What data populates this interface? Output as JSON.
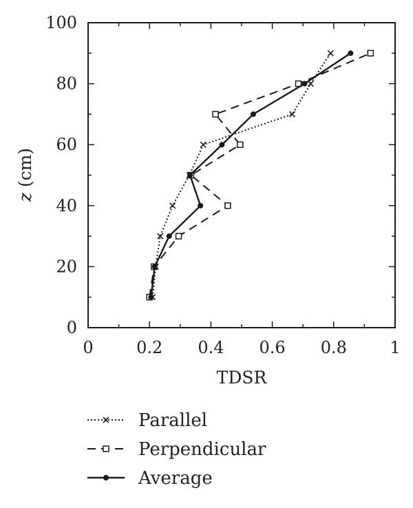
{
  "chart_data": {
    "type": "line",
    "title": "",
    "xlabel": "TDSR",
    "ylabel_italic": "z",
    "ylabel_rest": " (cm)",
    "xlim": [
      0,
      1
    ],
    "ylim": [
      0,
      100
    ],
    "x_ticks": [
      {
        "value": 0,
        "label": "0"
      },
      {
        "value": 0.2,
        "label": "0.2"
      },
      {
        "value": 0.4,
        "label": "0.4"
      },
      {
        "value": 0.6,
        "label": "0.6"
      },
      {
        "value": 0.8,
        "label": "0.8"
      },
      {
        "value": 1,
        "label": "1"
      }
    ],
    "y_ticks": [
      {
        "value": 0,
        "label": "0"
      },
      {
        "value": 20,
        "label": "20"
      },
      {
        "value": 40,
        "label": "40"
      },
      {
        "value": 60,
        "label": "60"
      },
      {
        "value": 80,
        "label": "80"
      },
      {
        "value": 100,
        "label": "100"
      }
    ],
    "grid": false,
    "legend_position": "below",
    "series": [
      {
        "name": "Parallel",
        "style": "dotted",
        "marker": "x",
        "color": "#1a1a1a",
        "points": [
          {
            "x": 0.21,
            "z": 10
          },
          {
            "x": 0.22,
            "z": 20
          },
          {
            "x": 0.235,
            "z": 30
          },
          {
            "x": 0.275,
            "z": 40
          },
          {
            "x": 0.33,
            "z": 50
          },
          {
            "x": 0.375,
            "z": 60
          },
          {
            "x": 0.665,
            "z": 70
          },
          {
            "x": 0.725,
            "z": 80
          },
          {
            "x": 0.79,
            "z": 90
          }
        ]
      },
      {
        "name": "Perpendicular",
        "style": "dashed",
        "marker": "square",
        "color": "#1a1a1a",
        "points": [
          {
            "x": 0.2,
            "z": 10
          },
          {
            "x": 0.215,
            "z": 20
          },
          {
            "x": 0.295,
            "z": 30
          },
          {
            "x": 0.455,
            "z": 40
          },
          {
            "x": 0.335,
            "z": 50
          },
          {
            "x": 0.495,
            "z": 60
          },
          {
            "x": 0.415,
            "z": 70
          },
          {
            "x": 0.685,
            "z": 80
          },
          {
            "x": 0.92,
            "z": 90
          }
        ]
      },
      {
        "name": "Average",
        "style": "solid",
        "marker": "circle",
        "color": "#1a1a1a",
        "points": [
          {
            "x": 0.205,
            "z": 10
          },
          {
            "x": 0.217,
            "z": 20
          },
          {
            "x": 0.264,
            "z": 30
          },
          {
            "x": 0.366,
            "z": 40
          },
          {
            "x": 0.332,
            "z": 50
          },
          {
            "x": 0.436,
            "z": 60
          },
          {
            "x": 0.538,
            "z": 70
          },
          {
            "x": 0.705,
            "z": 80
          },
          {
            "x": 0.855,
            "z": 90
          }
        ]
      }
    ]
  }
}
